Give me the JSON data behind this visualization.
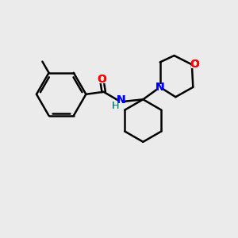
{
  "background_color": "#ebebeb",
  "bond_color": "#000000",
  "bond_width": 1.8,
  "atom_colors": {
    "O": "#ff0000",
    "N_amide": "#008080",
    "N_morph": "#0000ff",
    "H": "#008080"
  },
  "font_size_atom": 10,
  "font_size_H": 9,
  "xlim": [
    0,
    10
  ],
  "ylim": [
    0,
    10
  ]
}
